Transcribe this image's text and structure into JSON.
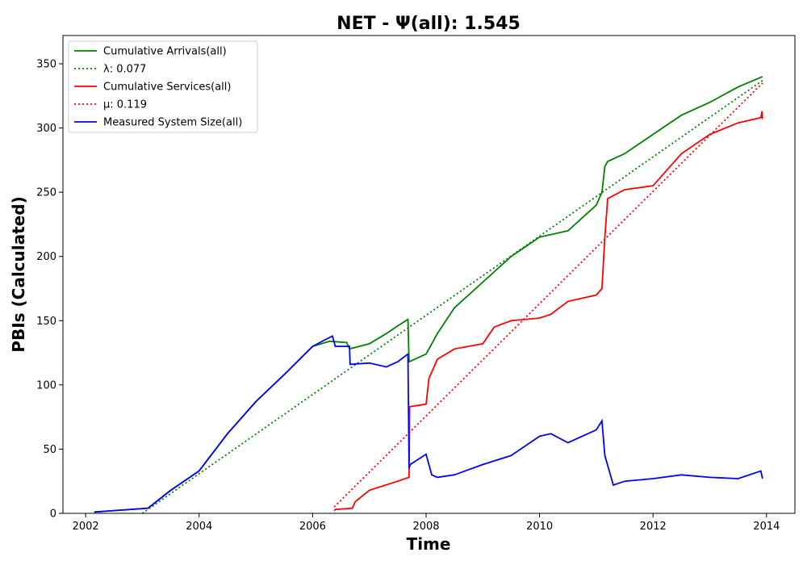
{
  "chart_data": {
    "type": "line",
    "title": "NET -  Ψ(all): 1.545",
    "xlabel": "Time",
    "ylabel": "PBIs (Calculated)",
    "xlim": [
      2001.6,
      2014.5
    ],
    "ylim": [
      0,
      372
    ],
    "xticks": [
      2002,
      2004,
      2006,
      2008,
      2010,
      2012,
      2014
    ],
    "yticks": [
      0,
      50,
      100,
      150,
      200,
      250,
      300,
      350
    ],
    "grid": false,
    "legend_position": "top-left",
    "series": [
      {
        "name": "Cumulative Arrivals(all)",
        "color": "#008000",
        "style": "solid",
        "x": [
          2002.15,
          2003.1,
          2003.5,
          2004.0,
          2004.5,
          2005.0,
          2005.5,
          2006.0,
          2006.3,
          2006.6,
          2006.65,
          2007.0,
          2007.3,
          2007.5,
          2007.68,
          2007.7,
          2008.0,
          2008.2,
          2008.5,
          2009.0,
          2009.5,
          2010.0,
          2010.5,
          2011.0,
          2011.1,
          2011.15,
          2011.2,
          2011.5,
          2012.0,
          2012.5,
          2013.0,
          2013.5,
          2013.93
        ],
        "values": [
          1,
          4,
          18,
          33,
          62,
          87,
          108,
          130,
          134,
          133,
          128,
          132,
          140,
          146,
          151,
          118,
          124,
          140,
          160,
          180,
          200,
          215,
          220,
          240,
          250,
          270,
          274,
          280,
          295,
          310,
          320,
          332,
          340
        ]
      },
      {
        "name": "λ: 0.077",
        "color": "#008000",
        "style": "dotted",
        "x": [
          2003.0,
          2013.93
        ],
        "values": [
          0,
          337
        ]
      },
      {
        "name": "Cumulative Services(all)",
        "color": "#ff0000",
        "style": "solid",
        "x": [
          2006.38,
          2006.4,
          2006.7,
          2006.75,
          2007.0,
          2007.5,
          2007.7,
          2007.71,
          2008.0,
          2008.05,
          2008.2,
          2008.5,
          2009.0,
          2009.2,
          2009.5,
          2010.0,
          2010.2,
          2010.5,
          2011.0,
          2011.1,
          2011.15,
          2011.2,
          2011.5,
          2012.0,
          2012.5,
          2013.0,
          2013.5,
          2013.9,
          2013.92,
          2013.93
        ],
        "values": [
          2,
          3,
          4,
          9,
          18,
          25,
          28,
          83,
          85,
          105,
          120,
          128,
          132,
          145,
          150,
          152,
          155,
          165,
          170,
          175,
          215,
          245,
          252,
          255,
          280,
          295,
          304,
          308,
          313,
          307
        ]
      },
      {
        "name": "μ: 0.119",
        "color": "#ff0000",
        "style": "dotted",
        "x": [
          2006.38,
          2013.93
        ],
        "values": [
          5,
          335
        ]
      },
      {
        "name": "Measured System Size(all)",
        "color": "#0000ff",
        "style": "solid",
        "x": [
          2002.15,
          2003.1,
          2003.5,
          2004.0,
          2004.5,
          2005.0,
          2005.5,
          2006.0,
          2006.3,
          2006.35,
          2006.4,
          2006.65,
          2006.66,
          2007.0,
          2007.3,
          2007.5,
          2007.68,
          2007.7,
          2007.72,
          2008.0,
          2008.1,
          2008.2,
          2008.5,
          2009.0,
          2009.5,
          2010.0,
          2010.2,
          2010.5,
          2011.0,
          2011.1,
          2011.15,
          2011.3,
          2011.5,
          2012.0,
          2012.5,
          2013.0,
          2013.5,
          2013.9,
          2013.93
        ],
        "values": [
          1,
          4,
          18,
          33,
          62,
          87,
          108,
          130,
          137,
          138,
          130,
          130,
          116,
          117,
          114,
          118,
          124,
          35,
          38,
          46,
          30,
          28,
          30,
          38,
          45,
          60,
          62,
          55,
          65,
          72,
          45,
          22,
          25,
          27,
          30,
          28,
          27,
          33,
          27
        ]
      }
    ]
  }
}
